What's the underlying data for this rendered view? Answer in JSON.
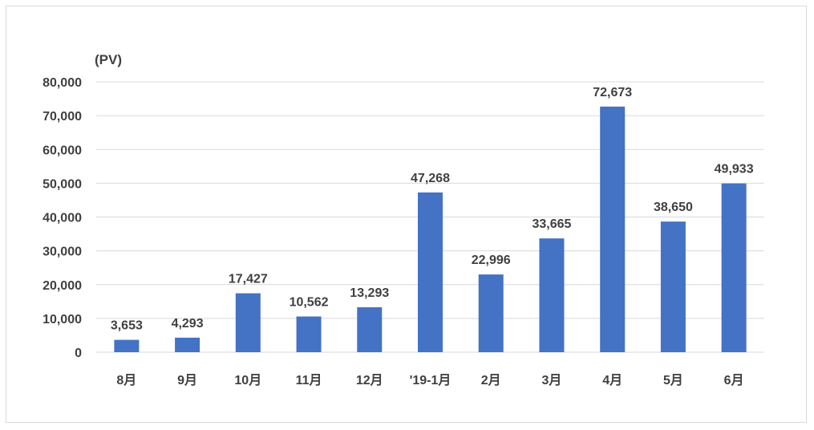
{
  "chart_data": {
    "type": "bar",
    "unit_label": "(PV)",
    "categories": [
      "8月",
      "9月",
      "10月",
      "11月",
      "12月",
      "'19-1月",
      "2月",
      "3月",
      "4月",
      "5月",
      "6月"
    ],
    "values": [
      3653,
      4293,
      17427,
      10562,
      13293,
      47268,
      22996,
      33665,
      72673,
      38650,
      49933
    ],
    "data_labels": [
      "3,653",
      "4,293",
      "17,427",
      "10,562",
      "13,293",
      "47,268",
      "22,996",
      "33,665",
      "72,673",
      "38,650",
      "49,933"
    ],
    "y_ticks": [
      0,
      10000,
      20000,
      30000,
      40000,
      50000,
      60000,
      70000,
      80000
    ],
    "y_tick_labels": [
      "0",
      "10,000",
      "20,000",
      "30,000",
      "40,000",
      "50,000",
      "60,000",
      "70,000",
      "80,000"
    ],
    "ylim": [
      0,
      80000
    ],
    "grid": true,
    "legend": "none",
    "bar_color": "#4472C4",
    "grid_color": "#d9d9d9"
  }
}
